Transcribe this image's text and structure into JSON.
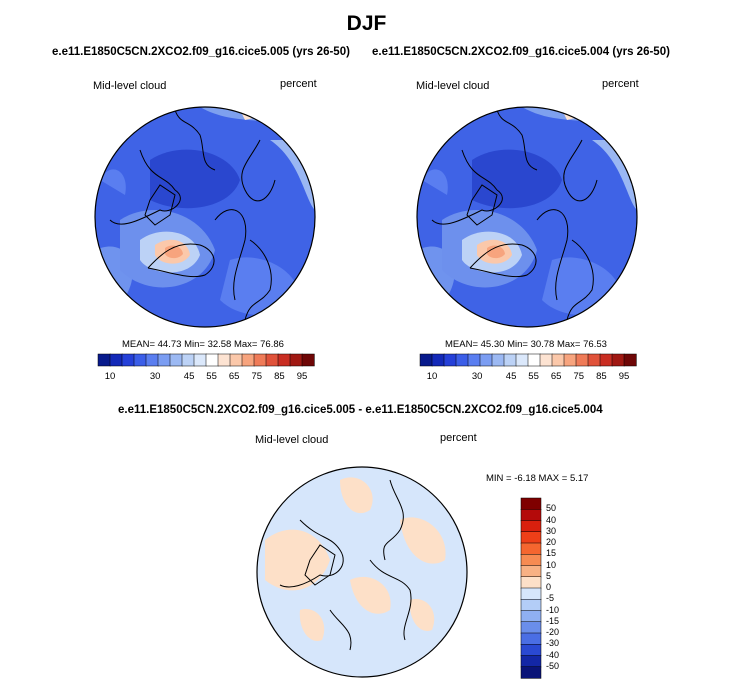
{
  "season": "DJF",
  "panels": [
    {
      "case_title": "e.e11.E1850C5CN.2XCO2.f09_g16.cice5.005 (yrs 26-50)",
      "variable": "Mid-level cloud",
      "units": "percent",
      "stats": {
        "mean_label": "MEAN=",
        "mean": "44.73",
        "min_label": "Min=",
        "min": "32.58",
        "max_label": "Max=",
        "max": "76.86"
      }
    },
    {
      "case_title": "e.e11.E1850C5CN.2XCO2.f09_g16.cice5.004 (yrs 26-50)",
      "variable": "Mid-level cloud",
      "units": "percent",
      "stats": {
        "mean_label": "MEAN=",
        "mean": "45.30",
        "min_label": "Min=",
        "min": "30.78",
        "max_label": "Max=",
        "max": "76.53"
      }
    }
  ],
  "diff_panel": {
    "title": "e.e11.E1850C5CN.2XCO2.f09_g16.cice5.005 - e.e11.E1850C5CN.2XCO2.f09_g16.cice5.004",
    "variable": "Mid-level cloud",
    "units": "percent",
    "min_label": "MIN =",
    "min": "-6.18",
    "max_label": "MAX =",
    "max": "5.17"
  },
  "chart_data": [
    {
      "type": "heatmap",
      "title": "Mid-level cloud (percent) - 005",
      "projection": "polar stereographic, North Pole",
      "colorbar_levels": [
        10,
        15,
        20,
        25,
        30,
        35,
        40,
        45,
        50,
        55,
        60,
        65,
        70,
        75,
        80,
        85,
        90,
        95
      ],
      "colorbar_labels": [
        "10",
        "30",
        "45",
        "55",
        "65",
        "75",
        "85",
        "95"
      ],
      "colorbar_colors": [
        "#081a8c",
        "#1329b8",
        "#2540d8",
        "#3b5ee8",
        "#5a7ef0",
        "#7b9df2",
        "#9cb9f3",
        "#bcd2f6",
        "#dbe8fb",
        "#ffffff",
        "#fde3d2",
        "#fbc8aa",
        "#f7a47e",
        "#ef7b58",
        "#e0523a",
        "#c92d22",
        "#a01812",
        "#6e0606"
      ],
      "mean": 44.73,
      "min": 32.58,
      "max": 76.86
    },
    {
      "type": "heatmap",
      "title": "Mid-level cloud (percent) - 004",
      "projection": "polar stereographic, North Pole",
      "colorbar_levels": [
        10,
        15,
        20,
        25,
        30,
        35,
        40,
        45,
        50,
        55,
        60,
        65,
        70,
        75,
        80,
        85,
        90,
        95
      ],
      "colorbar_labels": [
        "10",
        "30",
        "45",
        "55",
        "65",
        "75",
        "85",
        "95"
      ],
      "colorbar_colors": [
        "#081a8c",
        "#1329b8",
        "#2540d8",
        "#3b5ee8",
        "#5a7ef0",
        "#7b9df2",
        "#9cb9f3",
        "#bcd2f6",
        "#dbe8fb",
        "#ffffff",
        "#fde3d2",
        "#fbc8aa",
        "#f7a47e",
        "#ef7b58",
        "#e0523a",
        "#c92d22",
        "#a01812",
        "#6e0606"
      ],
      "mean": 45.3,
      "min": 30.78,
      "max": 76.53
    },
    {
      "type": "heatmap",
      "title": "Mid-level cloud (percent) - difference 005 - 004",
      "projection": "polar stereographic, North Pole",
      "colorbar_labels": [
        "50",
        "40",
        "30",
        "20",
        "15",
        "10",
        "5",
        "0",
        "-5",
        "-10",
        "-15",
        "-20",
        "-30",
        "-40",
        "-50"
      ],
      "colorbar_colors": [
        "#7f0000",
        "#b40a0a",
        "#d9200e",
        "#ee3f18",
        "#f5662f",
        "#f78b52",
        "#f8b184",
        "#fde0c8",
        "#d6e6fb",
        "#b3cdf7",
        "#8fb0f2",
        "#6a8eeb",
        "#4a6ee4",
        "#2a49d2",
        "#1327a6",
        "#0a1478"
      ],
      "min": -6.18,
      "max": 5.17
    }
  ]
}
